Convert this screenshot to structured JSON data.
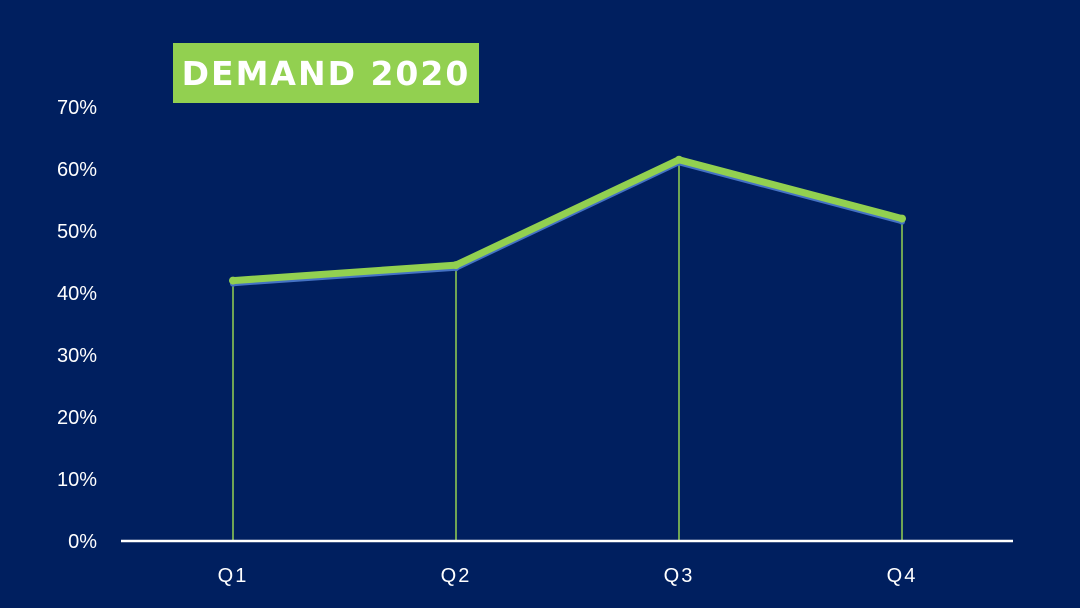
{
  "title": "DEMAND 2020",
  "colors": {
    "background": "#001F5F",
    "title_box": "#92D050",
    "line_primary": "#92D050",
    "line_shadow": "#4472C4",
    "drop_lines": "#92D050",
    "axis": "#FFFFFF",
    "text": "#FFFFFF"
  },
  "chart_data": {
    "type": "line",
    "title": "DEMAND 2020",
    "categories": [
      "Q1",
      "Q2",
      "Q3",
      "Q4"
    ],
    "series": [
      {
        "values": [
          42,
          44.5,
          61.5,
          52
        ]
      },
      {
        "values": [
          41.5,
          44,
          61,
          51.5
        ]
      }
    ],
    "y_unit": "%",
    "ylim": [
      0,
      70
    ],
    "y_ticks": [
      "0%",
      "10%",
      "20%",
      "30%",
      "40%",
      "50%",
      "60%",
      "70%"
    ],
    "drop_lines": true,
    "grid": false,
    "legend": "none"
  }
}
